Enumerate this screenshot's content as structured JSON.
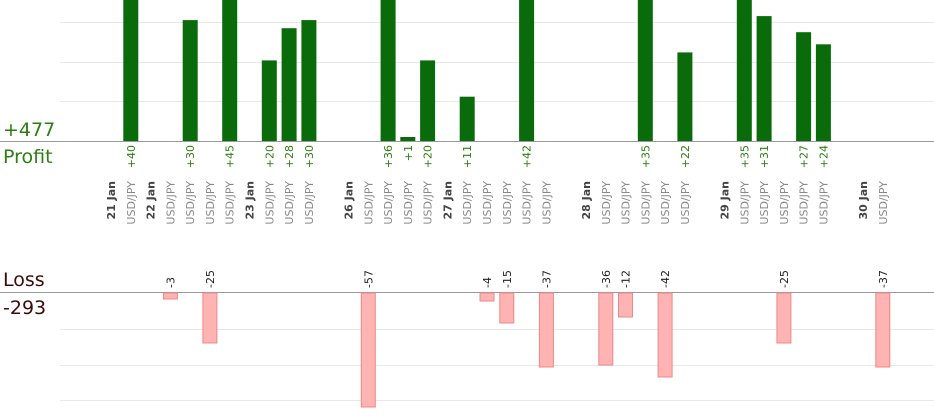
{
  "summary": {
    "profit_total": "+477",
    "profit_label": "Profit",
    "loss_label": "Loss",
    "loss_total": "-293"
  },
  "chart_data": {
    "type": "bar",
    "profit_ylim": [
      0,
      35
    ],
    "loss_ylim": [
      -57,
      0
    ],
    "colors": {
      "profit": "#0a6b0a",
      "loss": "#ffb3b3",
      "loss_edge": "#ee8888"
    },
    "slots": [
      {
        "kind": "date",
        "label": "21 Jan"
      },
      {
        "kind": "trade",
        "label": "USD/JPY",
        "value": 40
      },
      {
        "kind": "date",
        "label": "22 Jan"
      },
      {
        "kind": "trade",
        "label": "USD/JPY",
        "value": -3
      },
      {
        "kind": "trade",
        "label": "USD/JPY",
        "value": 30
      },
      {
        "kind": "trade",
        "label": "USD/JPY",
        "value": -25
      },
      {
        "kind": "trade",
        "label": "USD/JPY",
        "value": 45
      },
      {
        "kind": "date",
        "label": "23 Jan"
      },
      {
        "kind": "trade",
        "label": "USD/JPY",
        "value": 20
      },
      {
        "kind": "trade",
        "label": "USD/JPY",
        "value": 28
      },
      {
        "kind": "trade",
        "label": "USD/JPY",
        "value": 30
      },
      {
        "kind": "gap"
      },
      {
        "kind": "date",
        "label": "26 Jan"
      },
      {
        "kind": "trade",
        "label": "USD/JPY",
        "value": -57
      },
      {
        "kind": "trade",
        "label": "USD/JPY",
        "value": 36
      },
      {
        "kind": "trade",
        "label": "USD/JPY",
        "value": 1
      },
      {
        "kind": "trade",
        "label": "USD/JPY",
        "value": 20
      },
      {
        "kind": "date",
        "label": "27 Jan"
      },
      {
        "kind": "trade",
        "label": "USD/JPY",
        "value": 11
      },
      {
        "kind": "trade",
        "label": "USD/JPY",
        "value": -4
      },
      {
        "kind": "trade",
        "label": "USD/JPY",
        "value": -15
      },
      {
        "kind": "trade",
        "label": "USD/JPY",
        "value": 42
      },
      {
        "kind": "trade",
        "label": "USD/JPY",
        "value": -37
      },
      {
        "kind": "gap"
      },
      {
        "kind": "date",
        "label": "28 Jan"
      },
      {
        "kind": "trade",
        "label": "USD/JPY",
        "value": -36
      },
      {
        "kind": "trade",
        "label": "USD/JPY",
        "value": -12
      },
      {
        "kind": "trade",
        "label": "USD/JPY",
        "value": 35
      },
      {
        "kind": "trade",
        "label": "USD/JPY",
        "value": -42
      },
      {
        "kind": "trade",
        "label": "USD/JPY",
        "value": 22
      },
      {
        "kind": "gap"
      },
      {
        "kind": "date",
        "label": "29 Jan"
      },
      {
        "kind": "trade",
        "label": "USD/JPY",
        "value": 35
      },
      {
        "kind": "trade",
        "label": "USD/JPY",
        "value": 31
      },
      {
        "kind": "trade",
        "label": "USD/JPY",
        "value": -25
      },
      {
        "kind": "trade",
        "label": "USD/JPY",
        "value": 27
      },
      {
        "kind": "trade",
        "label": "USD/JPY",
        "value": 24
      },
      {
        "kind": "gap"
      },
      {
        "kind": "date",
        "label": "30 Jan"
      },
      {
        "kind": "trade",
        "label": "USD/JPY",
        "value": -37
      }
    ]
  }
}
